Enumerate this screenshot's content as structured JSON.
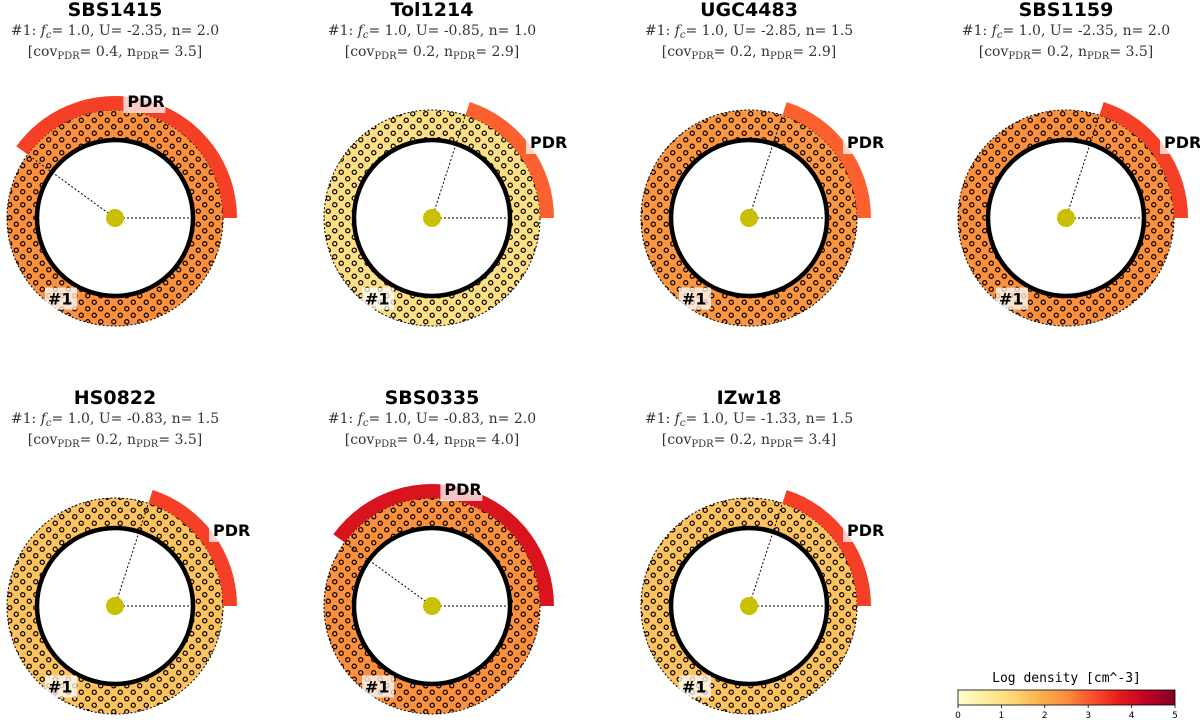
{
  "colors": {
    "scale": [
      "#ffffcc",
      "#ffeda0",
      "#fed976",
      "#feb24c",
      "#fd8d3c",
      "#fc4e2a",
      "#e31a1c",
      "#bd0026",
      "#800026"
    ],
    "star": "#c8c000",
    "ring_edge": "#000000",
    "hatch": "#000000"
  },
  "chart_data": {
    "type": "schematic-polar",
    "hatch_pattern": "o",
    "panels": [
      {
        "name": "SBS1415",
        "params_line": {
          "prefix": "#1:",
          "fc": "1.0",
          "U": "-2.35",
          "n": "2.0"
        },
        "pdr_line": {
          "cov": "0.4",
          "n": "3.5"
        },
        "ring_density": 2.45,
        "pdr_density": 3.3,
        "pdr_cov": 0.4,
        "pdr_label": "PDR",
        "component_label": "#1"
      },
      {
        "name": "Tol1214",
        "params_line": {
          "prefix": "#1:",
          "fc": "1.0",
          "U": "-0.85",
          "n": "1.0"
        },
        "pdr_line": {
          "cov": "0.2",
          "n": "2.9"
        },
        "ring_density": 1.05,
        "pdr_density": 2.95,
        "pdr_cov": 0.2,
        "pdr_label": "PDR",
        "component_label": "#1"
      },
      {
        "name": "UGC4483",
        "params_line": {
          "prefix": "#1:",
          "fc": "1.0",
          "U": "-2.85",
          "n": "1.5"
        },
        "pdr_line": {
          "cov": "0.2",
          "n": "2.9"
        },
        "ring_density": 2.35,
        "pdr_density": 2.95,
        "pdr_cov": 0.2,
        "pdr_label": "PDR",
        "component_label": "#1"
      },
      {
        "name": "SBS1159",
        "params_line": {
          "prefix": "#1:",
          "fc": "1.0",
          "U": "-2.35",
          "n": "2.0"
        },
        "pdr_line": {
          "cov": "0.2",
          "n": "3.5"
        },
        "ring_density": 2.45,
        "pdr_density": 3.3,
        "pdr_cov": 0.2,
        "pdr_label": "PDR",
        "component_label": "#1"
      },
      {
        "name": "HS0822",
        "params_line": {
          "prefix": "#1:",
          "fc": "1.0",
          "U": "-0.83",
          "n": "1.5"
        },
        "pdr_line": {
          "cov": "0.2",
          "n": "3.5"
        },
        "ring_density": 1.6,
        "pdr_density": 3.3,
        "pdr_cov": 0.2,
        "pdr_label": "PDR",
        "component_label": "#1"
      },
      {
        "name": "SBS0335",
        "params_line": {
          "prefix": "#1:",
          "fc": "1.0",
          "U": "-0.83",
          "n": "2.0"
        },
        "pdr_line": {
          "cov": "0.4",
          "n": "4.0"
        },
        "ring_density": 2.45,
        "pdr_density": 3.9,
        "pdr_cov": 0.4,
        "pdr_label": "PDR",
        "component_label": "#1"
      },
      {
        "name": "IZw18",
        "params_line": {
          "prefix": "#1:",
          "fc": "1.0",
          "U": "-1.33",
          "n": "1.5"
        },
        "pdr_line": {
          "cov": "0.2",
          "n": "3.4"
        },
        "ring_density": 1.6,
        "pdr_density": 3.3,
        "pdr_cov": 0.2,
        "pdr_label": "PDR",
        "component_label": "#1"
      }
    ],
    "colorbar": {
      "title": "Log density [cm^-3]",
      "range": [
        0,
        5
      ],
      "ticks": [
        0,
        1,
        2,
        3,
        4,
        5
      ],
      "tick_labels": [
        "0",
        "1",
        "2",
        "3",
        "4",
        "5"
      ],
      "colormap": "YlOrRd"
    }
  }
}
